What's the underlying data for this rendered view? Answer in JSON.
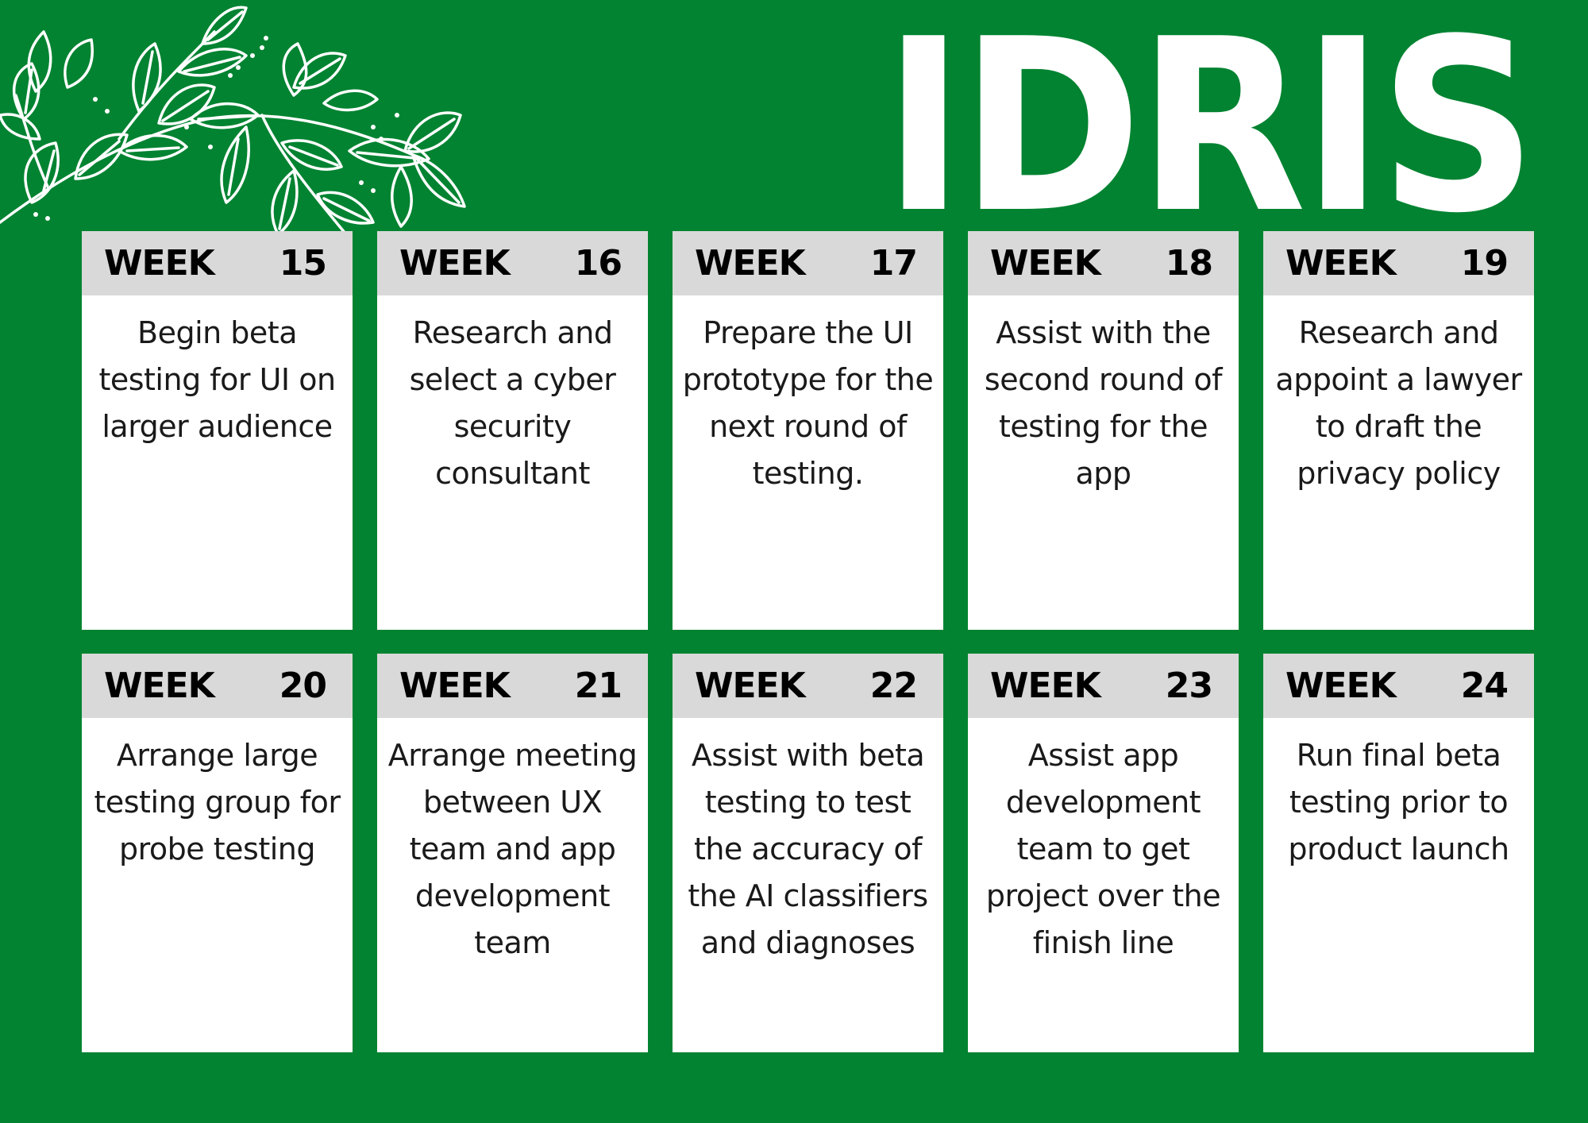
{
  "title": "IDRIS",
  "week_label": "WEEK",
  "weeks": [
    {
      "number": "15",
      "task": "Begin beta testing for UI on larger audience"
    },
    {
      "number": "16",
      "task": "Research and select a cyber security consultant"
    },
    {
      "number": "17",
      "task": "Prepare the UI prototype for the next round of testing."
    },
    {
      "number": "18",
      "task": "Assist with the second round of testing for the app"
    },
    {
      "number": "19",
      "task": "Research and appoint a lawyer to draft the privacy policy"
    },
    {
      "number": "20",
      "task": "Arrange large testing group for probe testing"
    },
    {
      "number": "21",
      "task": "Arrange meeting between UX team and app development team"
    },
    {
      "number": "22",
      "task": "Assist with beta testing to test the accuracy of the AI classifiers and diagnoses"
    },
    {
      "number": "23",
      "task": "Assist app development team to get project over the finish line"
    },
    {
      "number": "24",
      "task": "Run final beta testing prior to product launch"
    }
  ],
  "colors": {
    "background": "#028331",
    "header": "#d9d9d9",
    "card": "#ffffff"
  },
  "icons": [
    "leaf-branch-icon"
  ]
}
